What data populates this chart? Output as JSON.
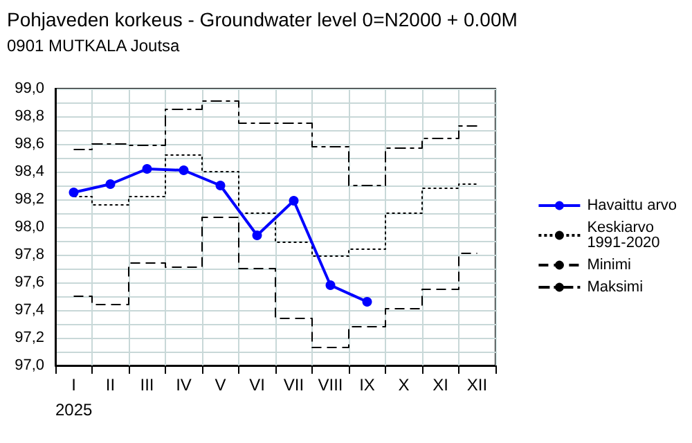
{
  "chart_data": {
    "type": "line",
    "title": "Pohjaveden korkeus - Groundwater level 0=N2000 + 0.00M",
    "subtitle": "0901 MUTKALA Joutsa",
    "xlabel": "2025",
    "categories": [
      "I",
      "II",
      "III",
      "IV",
      "V",
      "VI",
      "VII",
      "VIII",
      "IX",
      "X",
      "XI",
      "XII"
    ],
    "series": [
      {
        "name": "Havaittu arvo",
        "color": "#0000ff",
        "marker": "circle",
        "line_style": "solid",
        "values": [
          98.25,
          98.31,
          98.42,
          98.41,
          98.3,
          97.94,
          98.19,
          97.58,
          97.46,
          null,
          null,
          null
        ]
      },
      {
        "name": "Keskiarvo 1991-2020",
        "type": "step",
        "color": "#000000",
        "marker": "none",
        "line_style": "dotted",
        "values": [
          98.22,
          98.16,
          98.22,
          98.52,
          98.4,
          98.1,
          97.89,
          97.79,
          97.84,
          98.1,
          98.28,
          98.31
        ]
      },
      {
        "name": "Minimi",
        "type": "step",
        "color": "#000000",
        "marker": "none",
        "line_style": "dashed",
        "values": [
          97.5,
          97.44,
          97.74,
          97.71,
          98.07,
          97.7,
          97.34,
          97.13,
          97.28,
          97.41,
          97.55,
          97.81
        ]
      },
      {
        "name": "Maksimi",
        "type": "step",
        "color": "#000000",
        "marker": "none",
        "line_style": "dashed",
        "values": [
          98.56,
          98.6,
          98.59,
          98.85,
          98.91,
          98.75,
          98.75,
          98.58,
          98.3,
          98.57,
          98.64,
          98.73
        ]
      }
    ],
    "ylim": [
      97.0,
      99.0
    ],
    "yticks": [
      {
        "value": 97.0,
        "label": "97,0"
      },
      {
        "value": 97.1,
        "label": null
      },
      {
        "value": 97.2,
        "label": "97,2"
      },
      {
        "value": 97.3,
        "label": null
      },
      {
        "value": 97.4,
        "label": "97,4"
      },
      {
        "value": 97.5,
        "label": null
      },
      {
        "value": 97.6,
        "label": "97,6"
      },
      {
        "value": 97.7,
        "label": null
      },
      {
        "value": 97.8,
        "label": "97,8"
      },
      {
        "value": 97.9,
        "label": null
      },
      {
        "value": 98.0,
        "label": "98,0"
      },
      {
        "value": 98.1,
        "label": null
      },
      {
        "value": 98.2,
        "label": "98,2"
      },
      {
        "value": 98.3,
        "label": null
      },
      {
        "value": 98.4,
        "label": "98,4"
      },
      {
        "value": 98.5,
        "label": null
      },
      {
        "value": 98.6,
        "label": "98,6"
      },
      {
        "value": 98.7,
        "label": null
      },
      {
        "value": 98.8,
        "label": "98,8"
      },
      {
        "value": 98.9,
        "label": null
      },
      {
        "value": 99.0,
        "label": "99,0"
      }
    ],
    "grid": true,
    "legend": "right"
  }
}
